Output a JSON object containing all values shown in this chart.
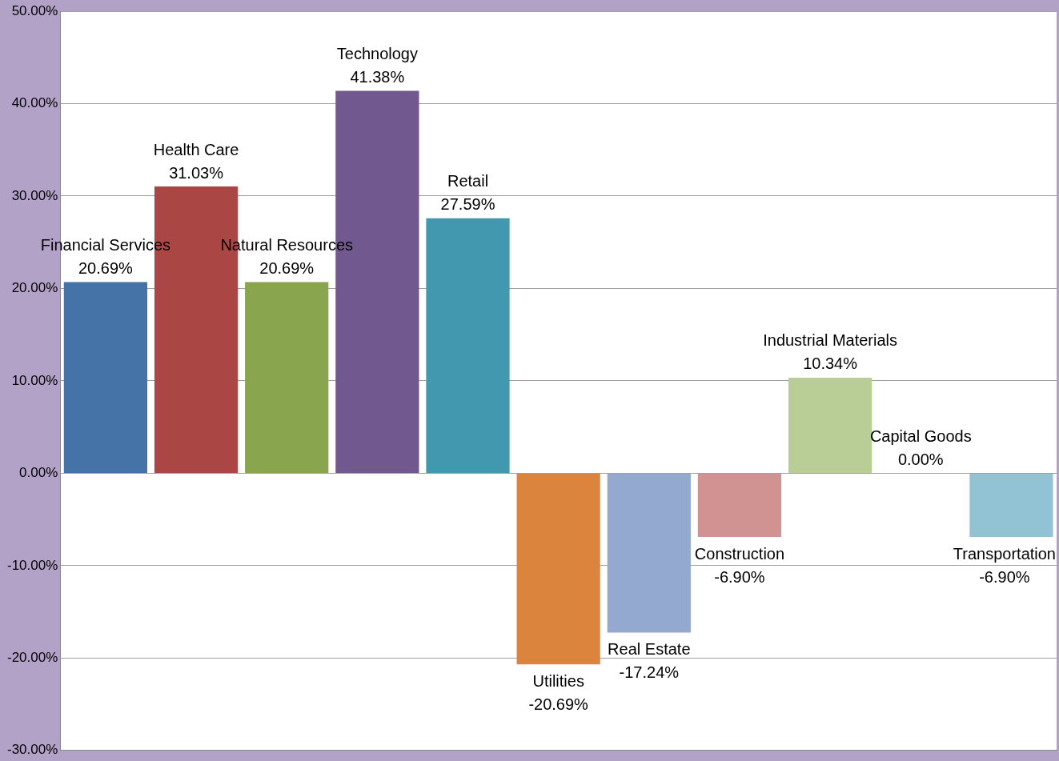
{
  "chart_data": {
    "type": "bar",
    "categories": [
      "Financial Services",
      "Health Care",
      "Natural Resources",
      "Technology",
      "Retail",
      "Utilities",
      "Real Estate",
      "Construction",
      "Industrial Materials",
      "Capital Goods",
      "Transportation"
    ],
    "values": [
      20.69,
      31.03,
      20.69,
      41.38,
      27.59,
      -20.69,
      -17.24,
      -6.9,
      10.34,
      0.0,
      -6.9
    ],
    "value_labels": [
      "20.69%",
      "31.03%",
      "20.69%",
      "41.38%",
      "27.59%",
      "-20.69%",
      "-17.24%",
      "-6.90%",
      "10.34%",
      "0.00%",
      "-6.90%"
    ],
    "colors": [
      "#4572a7",
      "#aa4643",
      "#89a54e",
      "#71588f",
      "#4198af",
      "#db843d",
      "#93a9cf",
      "#d19392",
      "#b9cd96",
      "#a99bbd",
      "#92c3d4"
    ],
    "ylim": [
      -30,
      50
    ],
    "yticks": [
      {
        "value": -30,
        "label": "-30.00%"
      },
      {
        "value": -20,
        "label": "-20.00%"
      },
      {
        "value": -10,
        "label": "-10.00%"
      },
      {
        "value": 0,
        "label": "0.00%"
      },
      {
        "value": 10,
        "label": "10.00%"
      },
      {
        "value": 20,
        "label": "20.00%"
      },
      {
        "value": 30,
        "label": "30.00%"
      },
      {
        "value": 40,
        "label": "40.00%"
      },
      {
        "value": 50,
        "label": "50.00%"
      }
    ],
    "grid": "y",
    "tick_labels": "y",
    "legend": false
  }
}
